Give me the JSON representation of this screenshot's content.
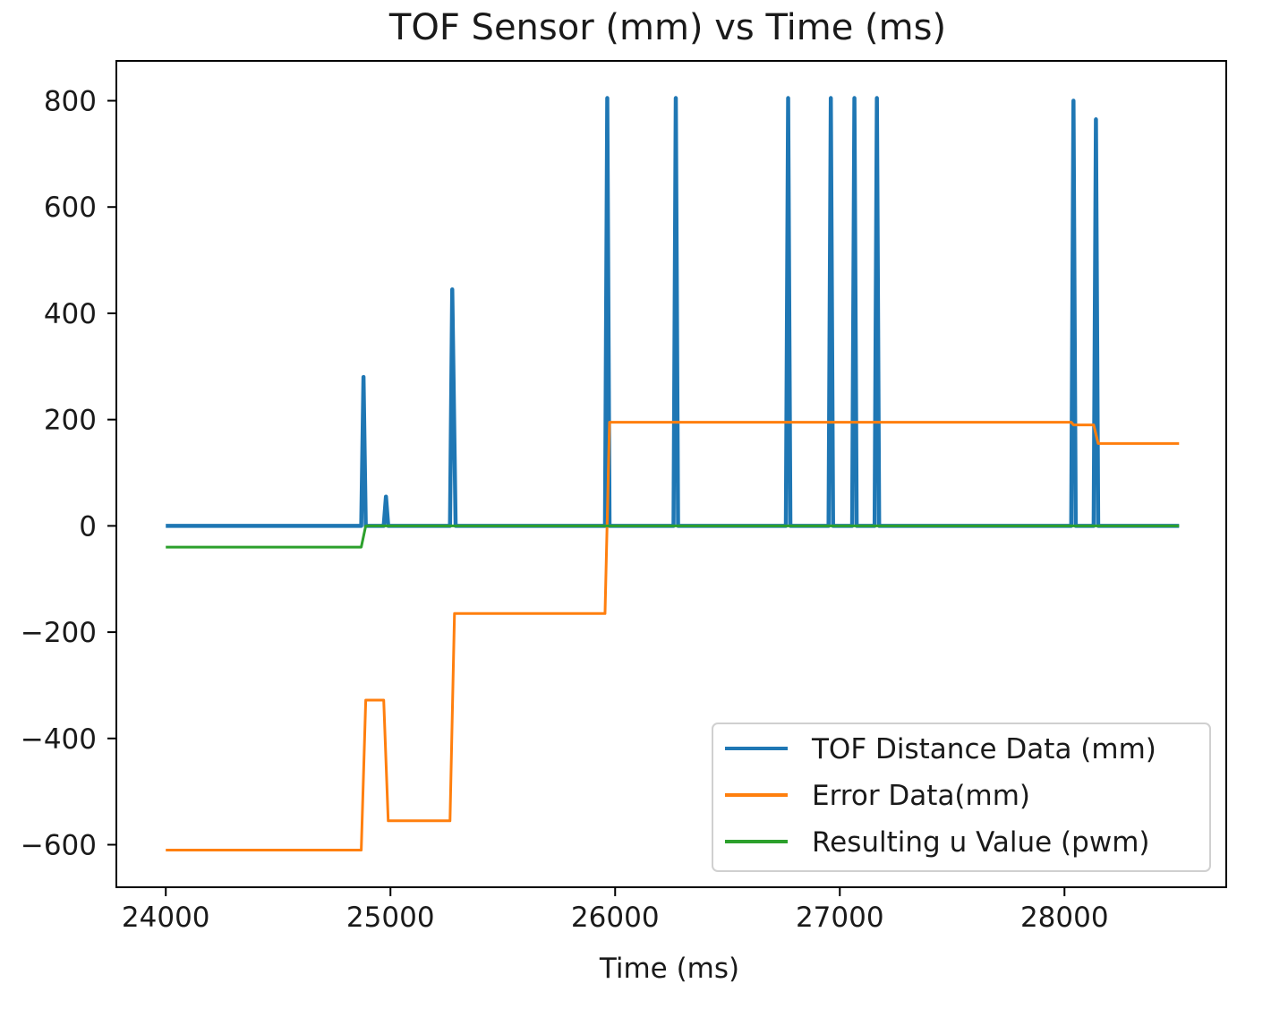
{
  "chart_data": {
    "type": "line",
    "title": "TOF Sensor (mm) vs Time (ms)",
    "xlabel": "Time (ms)",
    "ylabel": "",
    "xlim": [
      23780,
      28720
    ],
    "ylim": [
      -680,
      875
    ],
    "x_ticks": [
      24000,
      25000,
      26000,
      27000,
      28000
    ],
    "x_tick_labels": [
      "24000",
      "25000",
      "26000",
      "27000",
      "28000"
    ],
    "y_ticks": [
      -600,
      -400,
      -200,
      0,
      200,
      400,
      600,
      800
    ],
    "y_tick_labels": [
      "−600",
      "−400",
      "−200",
      "0",
      "200",
      "400",
      "600",
      "800"
    ],
    "grid": false,
    "legend_position": "lower-right",
    "series": [
      {
        "name": "TOF Distance Data (mm)",
        "color": "#1f77b4",
        "points": [
          [
            24000,
            0
          ],
          [
            24870,
            0
          ],
          [
            24880,
            280
          ],
          [
            24890,
            0
          ],
          [
            24970,
            0
          ],
          [
            24980,
            55
          ],
          [
            24990,
            0
          ],
          [
            25265,
            0
          ],
          [
            25275,
            445
          ],
          [
            25290,
            0
          ],
          [
            25955,
            0
          ],
          [
            25965,
            805
          ],
          [
            25975,
            0
          ],
          [
            26260,
            0
          ],
          [
            26270,
            805
          ],
          [
            26280,
            0
          ],
          [
            26760,
            0
          ],
          [
            26770,
            805
          ],
          [
            26780,
            0
          ],
          [
            26950,
            0
          ],
          [
            26960,
            805
          ],
          [
            26970,
            0
          ],
          [
            27055,
            0
          ],
          [
            27065,
            805
          ],
          [
            27075,
            0
          ],
          [
            27155,
            0
          ],
          [
            27165,
            805
          ],
          [
            27175,
            0
          ],
          [
            28030,
            0
          ],
          [
            28040,
            800
          ],
          [
            28050,
            0
          ],
          [
            28130,
            0
          ],
          [
            28140,
            765
          ],
          [
            28150,
            0
          ],
          [
            28510,
            0
          ]
        ]
      },
      {
        "name": "Error Data(mm)",
        "color": "#ff7f0e",
        "points": [
          [
            24000,
            -610
          ],
          [
            24870,
            -610
          ],
          [
            24890,
            -328
          ],
          [
            24970,
            -328
          ],
          [
            24990,
            -555
          ],
          [
            25265,
            -555
          ],
          [
            25285,
            -165
          ],
          [
            25955,
            -165
          ],
          [
            25975,
            195
          ],
          [
            28030,
            195
          ],
          [
            28040,
            190
          ],
          [
            28130,
            190
          ],
          [
            28150,
            155
          ],
          [
            28510,
            155
          ]
        ]
      },
      {
        "name": "Resulting u Value (pwm)",
        "color": "#2ca02c",
        "points": [
          [
            24000,
            -40
          ],
          [
            24870,
            -40
          ],
          [
            24890,
            0
          ],
          [
            28510,
            0
          ]
        ]
      }
    ]
  }
}
